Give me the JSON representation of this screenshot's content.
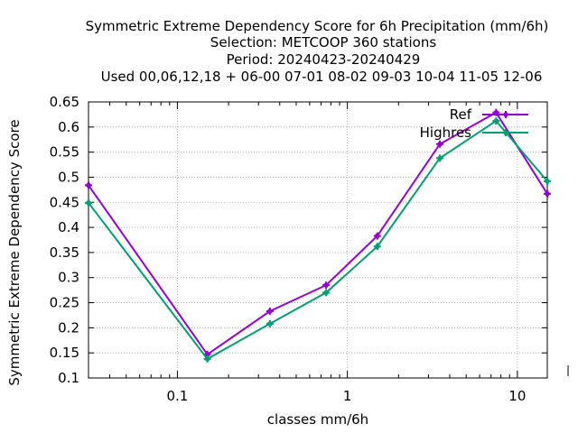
{
  "chart_data": {
    "type": "line",
    "title_lines": [
      "Symmetric Extreme Dependency Score  for 6h Precipitation (mm/6h)",
      "Selection: METCOOP    360 stations",
      "Period: 20240423-20240429",
      "Used  00,06,12,18 + 06-00 07-01 08-02 09-03 10-04 11-05 12-06"
    ],
    "xlabel": "classes mm/6h",
    "ylabel": "Symmetric Extreme Dependency Score",
    "xscale": "log",
    "xlim": [
      0.03,
      15
    ],
    "ylim": [
      0.1,
      0.65
    ],
    "xticks": [
      0.1,
      1,
      10
    ],
    "xtick_labels": [
      "0.1",
      "1",
      "10"
    ],
    "yticks": [
      0.1,
      0.15,
      0.2,
      0.25,
      0.3,
      0.35,
      0.4,
      0.45,
      0.5,
      0.55,
      0.6,
      0.65
    ],
    "ytick_labels": [
      "0.1",
      "0.15",
      "0.2",
      "0.25",
      "0.3",
      "0.35",
      "0.4",
      "0.45",
      "0.5",
      "0.55",
      "0.6",
      "0.65"
    ],
    "grid": true,
    "legend_position": "top-right",
    "x": [
      0.03,
      0.15,
      0.35,
      0.75,
      1.5,
      3.5,
      7.5,
      15
    ],
    "series": [
      {
        "name": "Ref",
        "color": "#9400d3",
        "values": [
          0.484,
          0.147,
          0.233,
          0.285,
          0.383,
          0.566,
          0.629,
          0.467
        ]
      },
      {
        "name": "Highres",
        "color": "#009e73",
        "values": [
          0.449,
          0.138,
          0.208,
          0.27,
          0.362,
          0.538,
          0.612,
          0.492
        ]
      }
    ]
  }
}
